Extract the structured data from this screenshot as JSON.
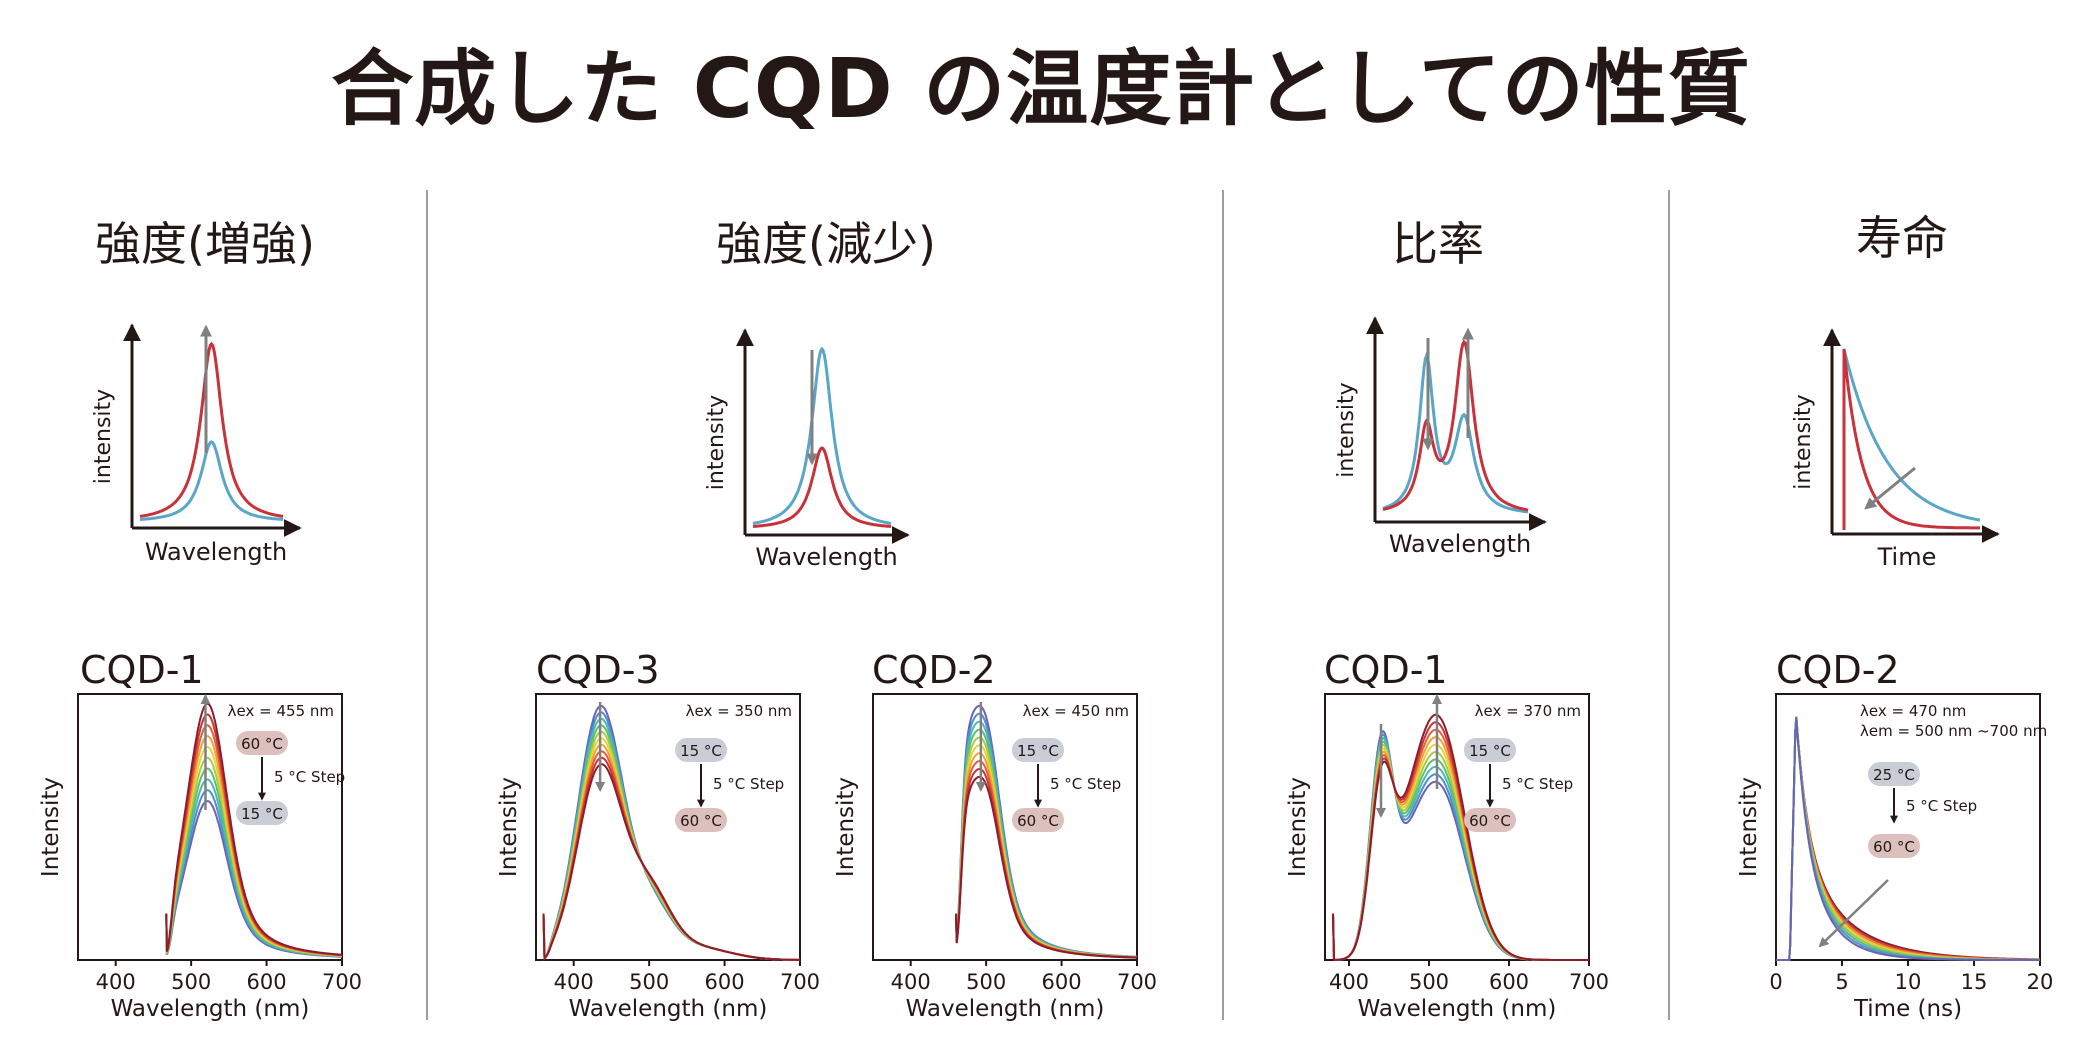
{
  "page_title": "合成した CQD の温度計としての性質",
  "sections": [
    {
      "title": "強度(増強)"
    },
    {
      "title": "強度(減少)"
    },
    {
      "title": "比率"
    },
    {
      "title": "寿命"
    }
  ],
  "colors": {
    "cold": "#5aa6c8",
    "hot": "#c8323a",
    "arrow": "#808080",
    "axis": "#231815",
    "badge_cold": "#c9cdd6",
    "badge_hot": "#dcc0bd"
  },
  "schematics": [
    {
      "id": "s1",
      "type": "line",
      "xlabel": "Wavelength",
      "ylabel": "intensity",
      "arrow": "up",
      "series": [
        {
          "name": "cold",
          "shape": "single-peak",
          "peak": 0.45
        },
        {
          "name": "hot",
          "shape": "single-peak",
          "peak": 1.0
        }
      ]
    },
    {
      "id": "s2",
      "type": "line",
      "xlabel": "Wavelength",
      "ylabel": "intensity",
      "arrow": "down",
      "series": [
        {
          "name": "cold",
          "shape": "single-peak",
          "peak": 1.0
        },
        {
          "name": "hot",
          "shape": "single-peak",
          "peak": 0.45
        }
      ]
    },
    {
      "id": "s3",
      "type": "line",
      "xlabel": "Wavelength",
      "ylabel": "intensity",
      "arrow": "both",
      "series": [
        {
          "name": "cold",
          "shape": "dual-peak",
          "peaks": [
            0.85,
            0.55
          ]
        },
        {
          "name": "hot",
          "shape": "dual-peak",
          "peaks": [
            0.45,
            1.0
          ]
        }
      ]
    },
    {
      "id": "s4",
      "type": "line",
      "xlabel": "Time",
      "ylabel": "intensity",
      "arrow": "down-left",
      "series": [
        {
          "name": "cold",
          "shape": "decay",
          "tau": 0.32
        },
        {
          "name": "hot",
          "shape": "decay",
          "tau": 0.13
        }
      ]
    }
  ],
  "chart_data": [
    {
      "id": "c1",
      "type": "line",
      "title": "CQD-1",
      "xlabel": "Wavelength (nm)",
      "ylabel": "Intensity",
      "xlim": [
        350,
        700
      ],
      "xticks": [
        400,
        500,
        600,
        700
      ],
      "excitation": "λex = 455 nm",
      "emission": "",
      "step_label": "5 °C Step",
      "temp_top": "60 °C",
      "temp_bottom": "15 °C",
      "top_is_hot": true,
      "trend": "increase",
      "n_curves": 10,
      "temp_range": [
        15,
        60
      ],
      "peak_nm": 519,
      "spectrum_start_nm": 467,
      "peak_intensity_range": [
        0.62,
        1.0
      ]
    },
    {
      "id": "c2",
      "type": "line",
      "title": "CQD-3",
      "xlabel": "Wavelength (nm)",
      "ylabel": "Intensity",
      "xlim": [
        350,
        700
      ],
      "xticks": [
        400,
        500,
        600,
        700
      ],
      "excitation": "λex = 350 nm",
      "emission": "",
      "step_label": "5 °C Step",
      "temp_top": "15 °C",
      "temp_bottom": "60 °C",
      "top_is_hot": false,
      "trend": "decrease",
      "n_curves": 10,
      "temp_range": [
        15,
        60
      ],
      "peak_nm": 435,
      "shoulder_nm": 500,
      "spectrum_start_nm": 360,
      "peak_intensity_range": [
        0.74,
        0.97
      ]
    },
    {
      "id": "c3",
      "type": "line",
      "title": "CQD-2",
      "xlabel": "Wavelength (nm)",
      "ylabel": "Intensity",
      "xlim": [
        350,
        700
      ],
      "xticks": [
        400,
        500,
        600,
        700
      ],
      "excitation": "λex = 450 nm",
      "emission": "",
      "step_label": "5 °C Step",
      "temp_top": "15 °C",
      "temp_bottom": "60 °C",
      "top_is_hot": false,
      "trend": "decrease",
      "n_curves": 10,
      "temp_range": [
        15,
        60
      ],
      "peak_nm": 493,
      "spectrum_start_nm": 460,
      "peak_intensity_range": [
        0.7,
        0.97
      ]
    },
    {
      "id": "c4",
      "type": "line",
      "title": "CQD-1",
      "xlabel": "Wavelength (nm)",
      "ylabel": "Intensity",
      "xlim": [
        370,
        700
      ],
      "xticks": [
        400,
        500,
        600,
        700
      ],
      "excitation": "λex = 370 nm",
      "emission": "",
      "step_label": "5 °C Step",
      "temp_top": "15 °C",
      "temp_bottom": "60 °C",
      "top_is_hot": false,
      "trend": "ratio",
      "n_curves": 10,
      "temp_range": [
        15,
        60
      ],
      "peak1_nm": 440,
      "peak2_nm": 510,
      "spectrum_start_nm": 380,
      "peak1_intensity_range": [
        0.74,
        0.58
      ],
      "peak2_intensity_range": [
        0.68,
        0.94
      ]
    },
    {
      "id": "c5",
      "type": "line",
      "title": "CQD-2",
      "xlabel": "Time (ns)",
      "ylabel": "Intensity",
      "xlim": [
        0,
        20
      ],
      "xticks": [
        0,
        5,
        10,
        15,
        20
      ],
      "excitation": "λex = 470 nm",
      "emission": "λem = 500 nm ~700 nm",
      "step_label": "5 °C Step",
      "temp_top": "25 °C",
      "temp_bottom": "60 °C",
      "top_is_hot": false,
      "trend": "lifetime",
      "n_curves": 8,
      "temp_range": [
        25,
        60
      ],
      "peak_time_ns": 1.5,
      "lifetime_ns_range": [
        3.6,
        2.2
      ]
    }
  ]
}
